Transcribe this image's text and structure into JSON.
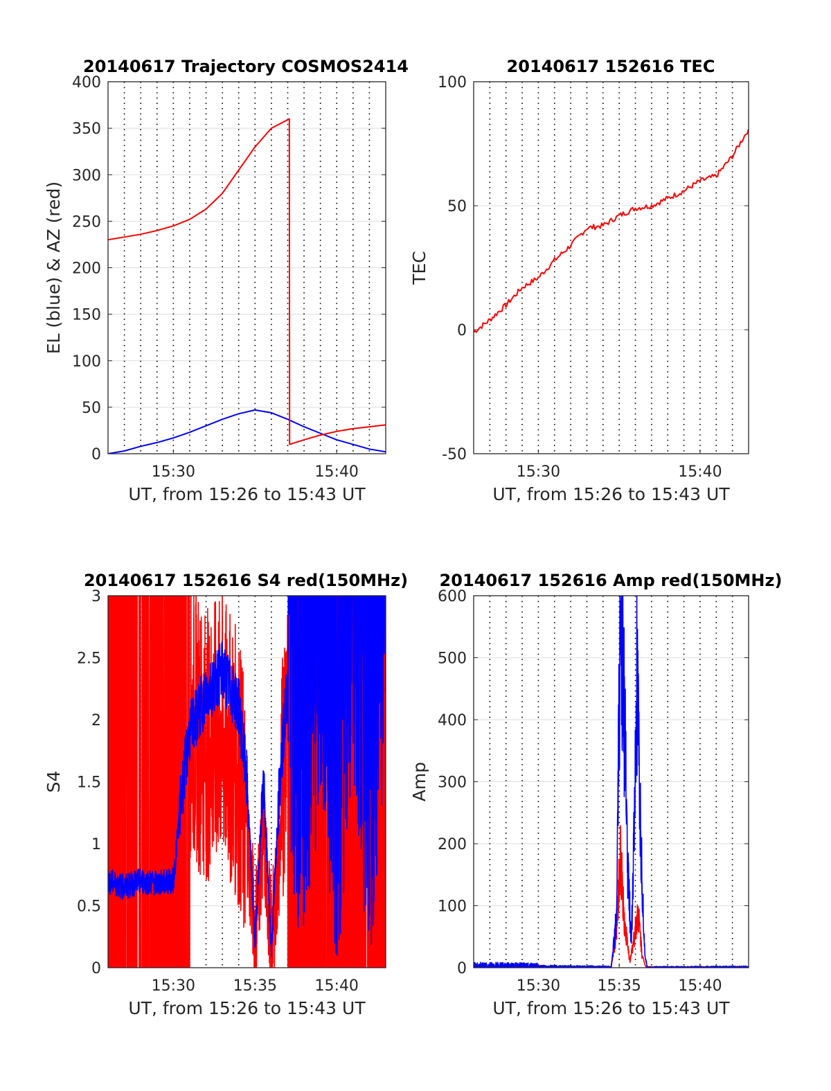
{
  "figure": {
    "background": "#ffffff",
    "colors": {
      "el": "#0000ff",
      "az": "#ff0000",
      "tec": "#ff0000",
      "s4_red": "#ff0000",
      "s4_blue": "#0000ff",
      "amp_red": "#ff0000",
      "amp_blue": "#0000ff",
      "grid": "#dddddd",
      "vgrid": "#000000"
    }
  },
  "chart_data": [
    {
      "type": "line",
      "title": "20140617 Trajectory COSMOS2414",
      "xlabel": "UT, from 15:26 to 15:43 UT",
      "ylabel": "EL (blue) & AZ (red)",
      "xlim": [
        "15:26",
        "15:43"
      ],
      "ylim": [
        0,
        400
      ],
      "x_ticks": [
        "15:30",
        "15:40"
      ],
      "y_ticks": [
        "0",
        "50",
        "100",
        "150",
        "200",
        "250",
        "300",
        "350",
        "400"
      ],
      "grid": true,
      "series": [
        {
          "color": "#0000ff",
          "points": [
            [
              "15:26",
              0
            ],
            [
              "15:27",
              3
            ],
            [
              "15:28",
              8
            ],
            [
              "15:29",
              12
            ],
            [
              "15:30",
              17
            ],
            [
              "15:31",
              23
            ],
            [
              "15:32",
              30
            ],
            [
              "15:33",
              37
            ],
            [
              "15:34",
              43
            ],
            [
              "15:35",
              47
            ],
            [
              "15:36",
              44
            ],
            [
              "15:37",
              37
            ],
            [
              "15:38",
              29
            ],
            [
              "15:39",
              22
            ],
            [
              "15:40",
              15
            ],
            [
              "15:41",
              10
            ],
            [
              "15:42",
              5
            ],
            [
              "15:43",
              2
            ]
          ]
        },
        {
          "color": "#ff0000",
          "points": [
            [
              "15:26",
              230
            ],
            [
              "15:27",
              233
            ],
            [
              "15:28",
              236
            ],
            [
              "15:29",
              240
            ],
            [
              "15:30",
              245
            ],
            [
              "15:31",
              252
            ],
            [
              "15:32",
              263
            ],
            [
              "15:33",
              280
            ],
            [
              "15:34",
              305
            ],
            [
              "15:35",
              330
            ],
            [
              "15:36",
              350
            ],
            [
              "15:37:06",
              360
            ],
            [
              "15:37:07",
              10
            ],
            [
              "15:38",
              15
            ],
            [
              "15:39",
              20
            ],
            [
              "15:40",
              24
            ],
            [
              "15:41",
              27
            ],
            [
              "15:42",
              29
            ],
            [
              "15:43",
              31
            ]
          ]
        }
      ]
    },
    {
      "type": "line",
      "title": "20140617 152616 TEC",
      "xlabel": "UT, from 15:26 to 15:43 UT",
      "ylabel": "TEC",
      "xlim": [
        "15:26",
        "15:43"
      ],
      "ylim": [
        -50,
        100
      ],
      "x_ticks": [
        "15:30",
        "15:40"
      ],
      "y_ticks": [
        "-50",
        "0",
        "50",
        "100"
      ],
      "grid": true,
      "series": [
        {
          "color": "#ff0000",
          "points": [
            [
              "15:26",
              -1
            ],
            [
              "15:27",
              4
            ],
            [
              "15:28",
              10
            ],
            [
              "15:29",
              17
            ],
            [
              "15:30",
              21
            ],
            [
              "15:31",
              28
            ],
            [
              "15:32",
              34
            ],
            [
              "15:33",
              41
            ],
            [
              "15:34",
              42
            ],
            [
              "15:35",
              46
            ],
            [
              "15:36",
              49
            ],
            [
              "15:37",
              50
            ],
            [
              "15:38",
              53
            ],
            [
              "15:39",
              56
            ],
            [
              "15:40",
              60
            ],
            [
              "15:41",
              62
            ],
            [
              "15:42",
              70
            ],
            [
              "15:43",
              81
            ]
          ]
        }
      ]
    },
    {
      "type": "line",
      "title": "20140617 152616 S4 red(150MHz)",
      "xlabel": "UT, from 15:26 to 15:43 UT",
      "ylabel": "S4",
      "xlim": [
        "15:26",
        "15:43"
      ],
      "ylim": [
        0,
        3
      ],
      "x_ticks": [
        "15:30",
        "15:35",
        "15:40"
      ],
      "y_ticks": [
        "0",
        "0.5",
        "1",
        "1.5",
        "2",
        "2.5",
        "3"
      ],
      "grid": true,
      "series": [
        {
          "color": "#ff0000",
          "points": [
            [
              "15:26",
              3
            ],
            [
              "15:27",
              0
            ],
            [
              "15:28",
              3
            ],
            [
              "15:29",
              0
            ],
            [
              "15:30",
              3
            ],
            [
              "15:31",
              2
            ],
            [
              "15:32",
              1.8
            ],
            [
              "15:33",
              1.9
            ],
            [
              "15:34",
              1.6
            ],
            [
              "15:34:30",
              1.1
            ],
            [
              "15:35",
              0.3
            ],
            [
              "15:35:30",
              1.1
            ],
            [
              "15:36",
              0.2
            ],
            [
              "15:36:30",
              0.9
            ],
            [
              "15:37",
              2.5
            ],
            [
              "15:38",
              0
            ],
            [
              "15:39",
              3
            ],
            [
              "15:40",
              0
            ],
            [
              "15:41",
              3
            ],
            [
              "15:42",
              0
            ],
            [
              "15:43",
              3
            ]
          ]
        },
        {
          "color": "#0000ff",
          "points": [
            [
              "15:26",
              0.7
            ],
            [
              "15:27",
              0.65
            ],
            [
              "15:28",
              0.7
            ],
            [
              "15:29",
              0.68
            ],
            [
              "15:30",
              0.7
            ],
            [
              "15:30:30",
              1.4
            ],
            [
              "15:31",
              1.9
            ],
            [
              "15:32",
              2.2
            ],
            [
              "15:33",
              2.4
            ],
            [
              "15:34",
              2.1
            ],
            [
              "15:34:30",
              1.5
            ],
            [
              "15:35",
              0.2
            ],
            [
              "15:35:30",
              1.5
            ],
            [
              "15:36",
              0.15
            ],
            [
              "15:36:30",
              1.5
            ],
            [
              "15:37",
              2.3
            ],
            [
              "15:38",
              1
            ],
            [
              "15:39",
              2.6
            ],
            [
              "15:40",
              1
            ],
            [
              "15:41",
              2.8
            ],
            [
              "15:42",
              1
            ],
            [
              "15:43",
              2.9
            ]
          ]
        }
      ]
    },
    {
      "type": "line",
      "title": "20140617 152616 Amp red(150MHz)",
      "xlabel": "UT, from 15:26 to 15:43 UT",
      "ylabel": "Amp",
      "xlim": [
        "15:26",
        "15:43"
      ],
      "ylim": [
        0,
        600
      ],
      "x_ticks": [
        "15:30",
        "15:35",
        "15:40"
      ],
      "y_ticks": [
        "0",
        "100",
        "200",
        "300",
        "400",
        "500",
        "600"
      ],
      "grid": true,
      "series": [
        {
          "color": "#ff0000",
          "points": [
            [
              "15:26",
              0
            ],
            [
              "15:34:30",
              0
            ],
            [
              "15:34:50",
              60
            ],
            [
              "15:35:05",
              180
            ],
            [
              "15:35:20",
              70
            ],
            [
              "15:35:40",
              10
            ],
            [
              "15:36:00",
              60
            ],
            [
              "15:36:10",
              90
            ],
            [
              "15:36:25",
              20
            ],
            [
              "15:36:40",
              0
            ],
            [
              "15:43",
              0
            ]
          ]
        },
        {
          "color": "#0000ff",
          "points": [
            [
              "15:26",
              3
            ],
            [
              "15:30",
              2
            ],
            [
              "15:34:30",
              1
            ],
            [
              "15:34:50",
              80
            ],
            [
              "15:35:05",
              570
            ],
            [
              "15:35:15",
              500
            ],
            [
              "15:35:30",
              180
            ],
            [
              "15:35:45",
              40
            ],
            [
              "15:36:00",
              300
            ],
            [
              "15:36:05",
              460
            ],
            [
              "15:36:20",
              200
            ],
            [
              "15:36:35",
              20
            ],
            [
              "15:36:45",
              0
            ],
            [
              "15:43",
              1
            ]
          ]
        }
      ]
    }
  ]
}
